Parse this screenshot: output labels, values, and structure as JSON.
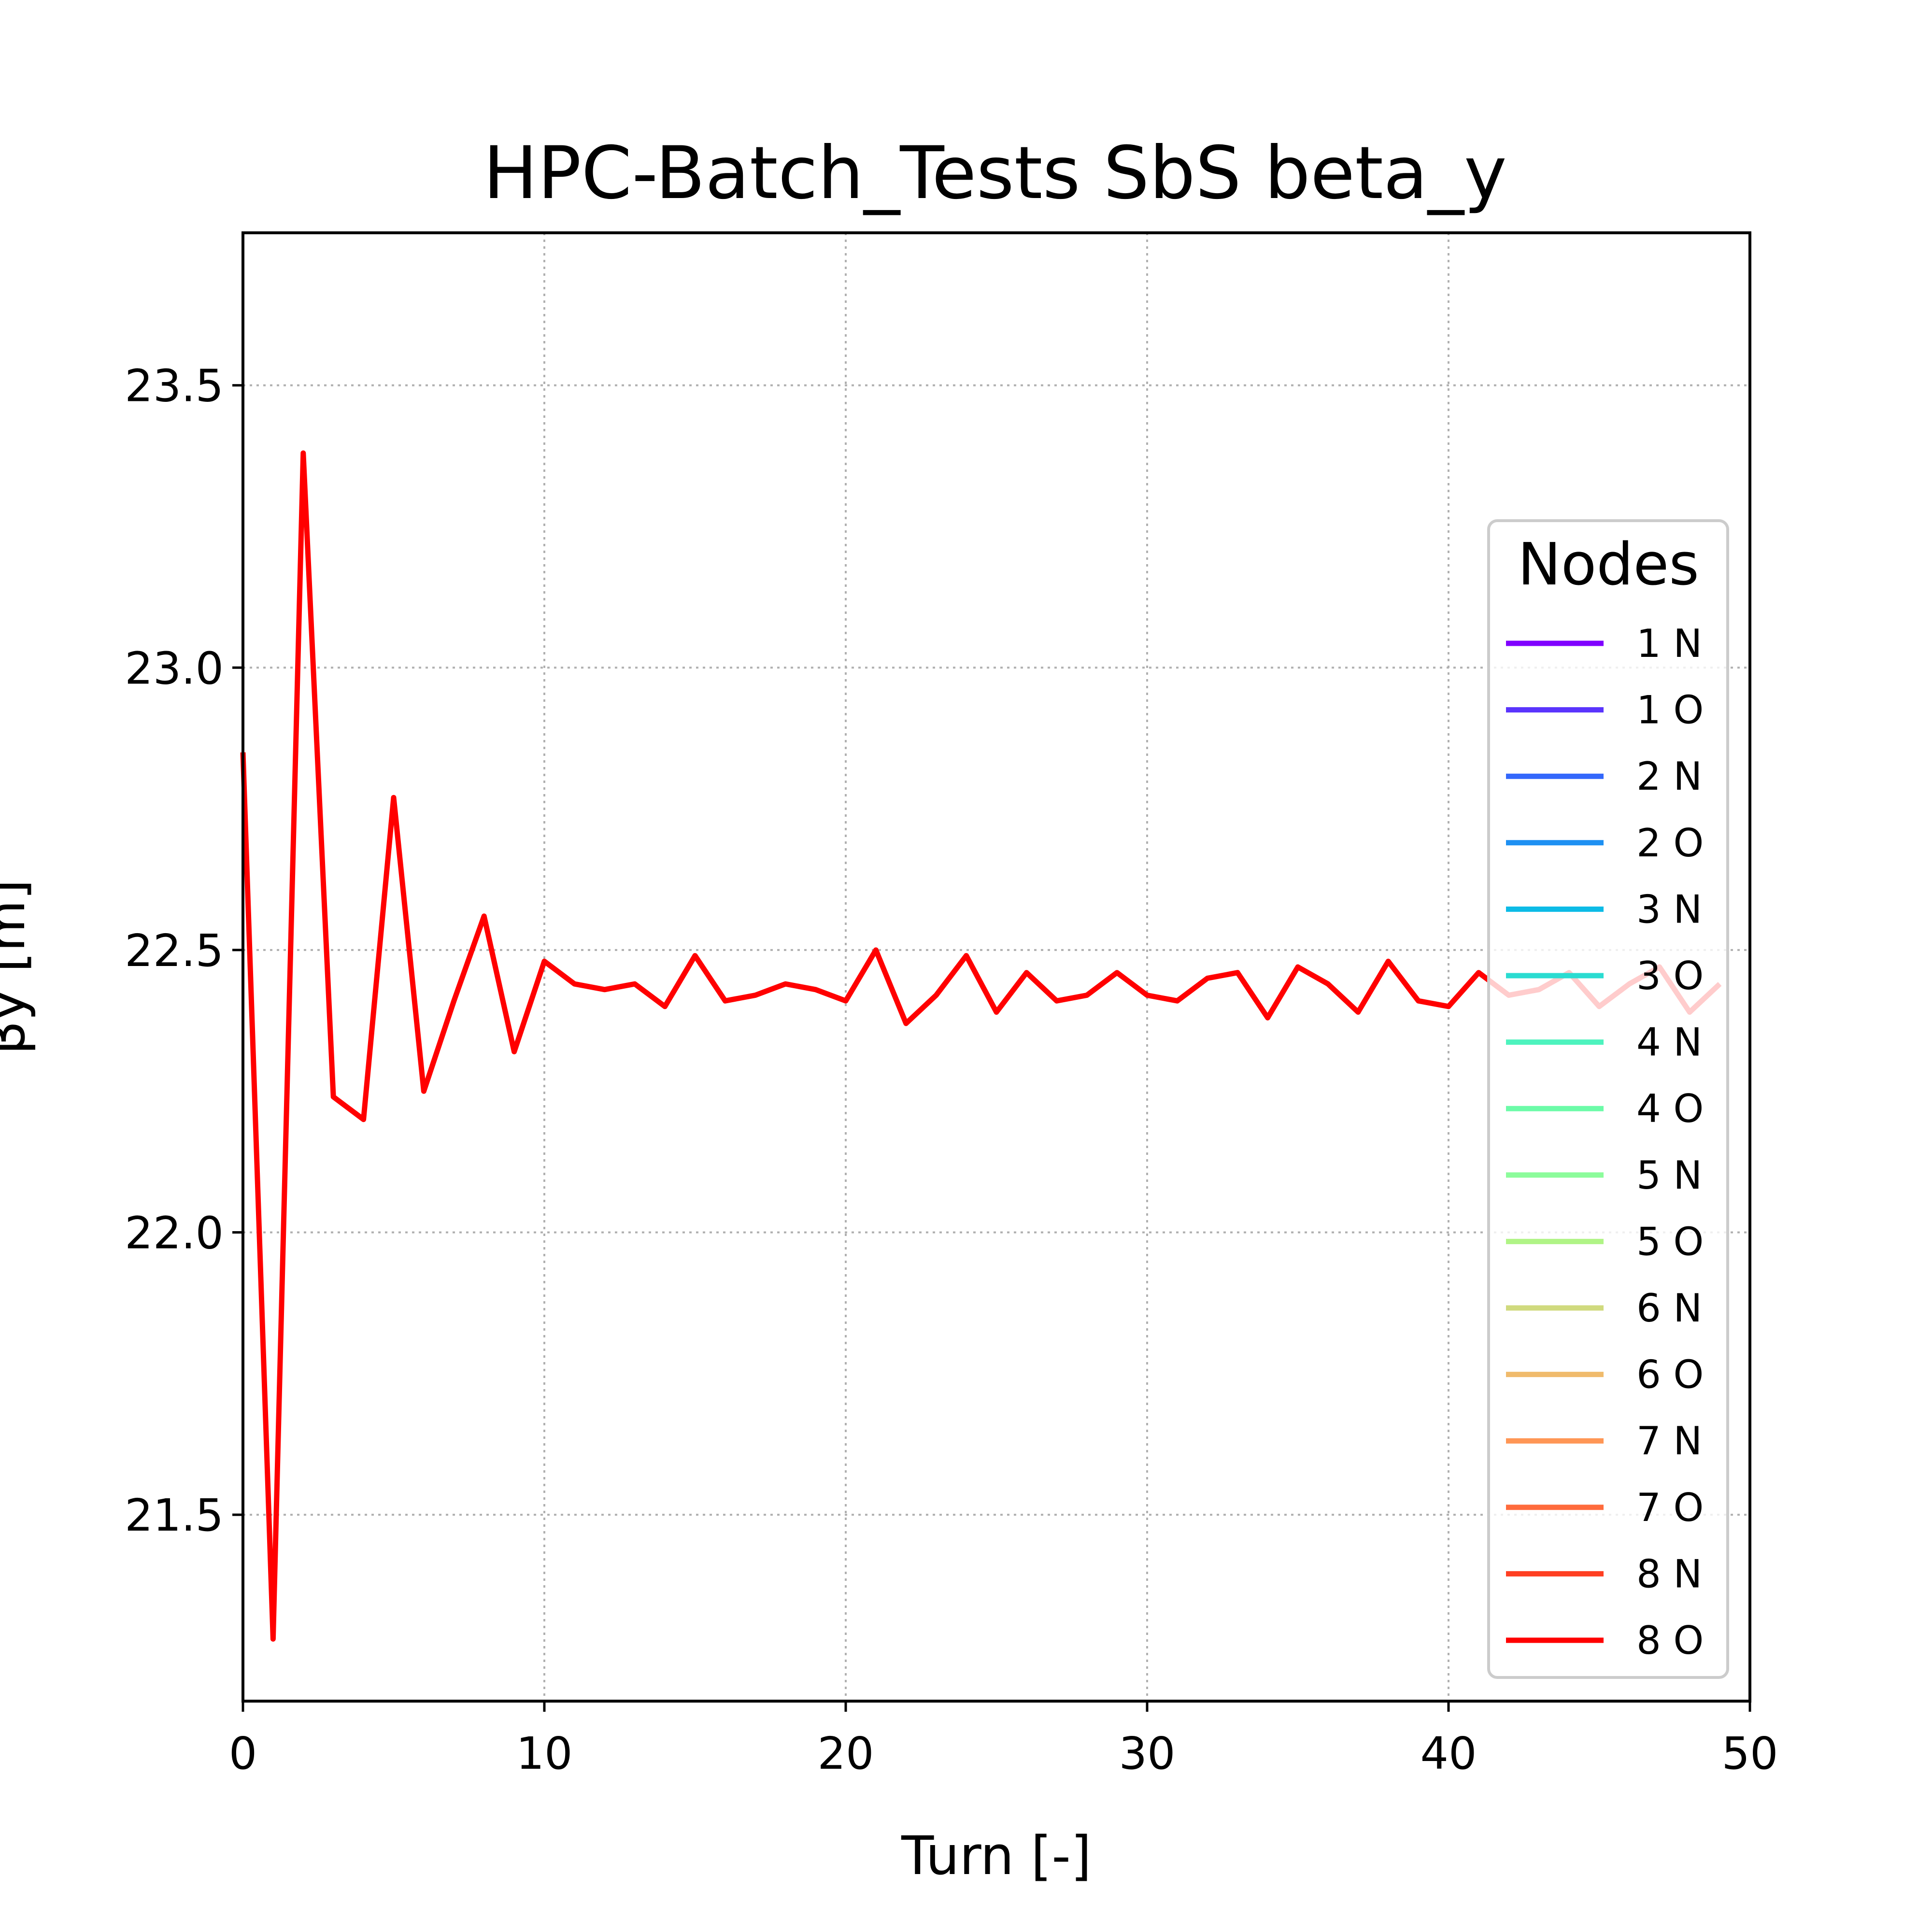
{
  "chart_data": {
    "type": "line",
    "title": "HPC-Batch_Tests SbS beta_y",
    "xlabel": "Turn [-]",
    "ylabel": "βy [m]",
    "xlim": [
      0,
      50
    ],
    "ylim": [
      21.17,
      23.77
    ],
    "xticks": [
      0,
      10,
      20,
      30,
      40,
      50
    ],
    "xtick_labels": [
      "0",
      "10",
      "20",
      "30",
      "40",
      "50"
    ],
    "yticks": [
      21.5,
      22.0,
      22.5,
      23.0,
      23.5
    ],
    "ytick_labels": [
      "21.5",
      "22.0",
      "22.5",
      "23.0",
      "23.5"
    ],
    "grid": true,
    "legend": {
      "title": "Nodes",
      "placement": "right",
      "entries": [
        {
          "label": "1 N",
          "color": "#8000ff"
        },
        {
          "label": "1 O",
          "color": "#5a34fd"
        },
        {
          "label": "2 N",
          "color": "#3367fb"
        },
        {
          "label": "2 O",
          "color": "#1e90f2"
        },
        {
          "label": "3 N",
          "color": "#0cbbe6"
        },
        {
          "label": "3 O",
          "color": "#2adcd1"
        },
        {
          "label": "4 N",
          "color": "#4ef3be"
        },
        {
          "label": "4 O",
          "color": "#6cfba8"
        },
        {
          "label": "5 N",
          "color": "#8cfc9b"
        },
        {
          "label": "5 O",
          "color": "#b0f486"
        },
        {
          "label": "6 N",
          "color": "#d0da7e"
        },
        {
          "label": "6 O",
          "color": "#f0bb6c"
        },
        {
          "label": "7 N",
          "color": "#ff9655"
        },
        {
          "label": "7 O",
          "color": "#ff6b3c"
        },
        {
          "label": "8 N",
          "color": "#ff3f22"
        },
        {
          "label": "8 O",
          "color": "#ff0000"
        }
      ]
    },
    "series": [
      {
        "name": "8 O",
        "color": "#ff0000",
        "x": [
          0,
          1,
          2,
          3,
          4,
          5,
          6,
          7,
          8,
          9,
          10,
          11,
          12,
          13,
          14,
          15,
          16,
          17,
          18,
          19,
          20,
          21,
          22,
          23,
          24,
          25,
          26,
          27,
          28,
          29,
          30,
          31,
          32,
          33,
          34,
          35,
          36,
          37,
          38,
          39,
          40,
          41,
          42,
          43,
          44,
          45,
          46,
          47,
          48,
          49
        ],
        "y": [
          22.85,
          21.28,
          23.38,
          22.24,
          22.2,
          22.77,
          22.25,
          22.41,
          22.56,
          22.32,
          22.48,
          22.44,
          22.43,
          22.44,
          22.4,
          22.49,
          22.41,
          22.42,
          22.44,
          22.43,
          22.41,
          22.5,
          22.37,
          22.42,
          22.49,
          22.39,
          22.46,
          22.41,
          22.42,
          22.46,
          22.42,
          22.41,
          22.45,
          22.46,
          22.38,
          22.47,
          22.44,
          22.39,
          22.48,
          22.41,
          22.4,
          22.46,
          22.42,
          22.43,
          22.46,
          22.4,
          22.44,
          22.47,
          22.39,
          22.44
        ]
      }
    ]
  }
}
